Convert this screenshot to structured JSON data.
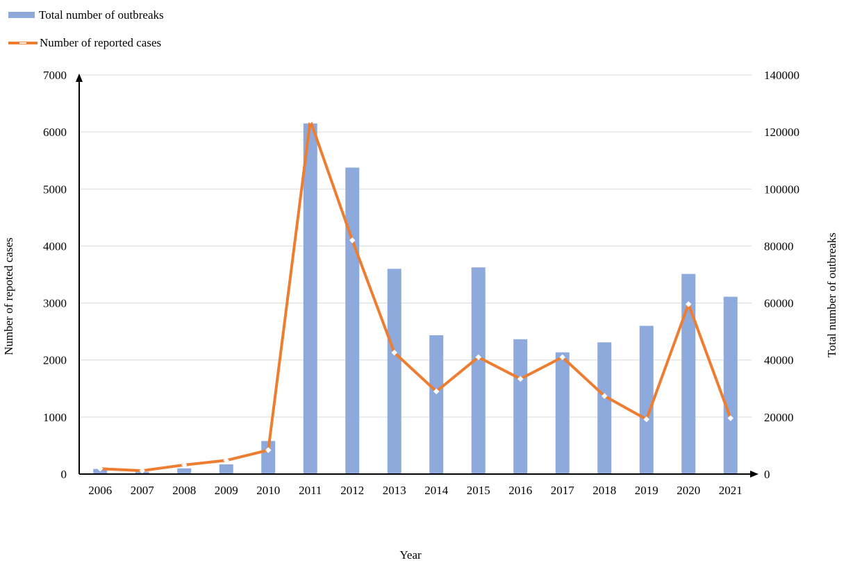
{
  "chart_data": {
    "type": "bar+line",
    "categories": [
      "2006",
      "2007",
      "2008",
      "2009",
      "2010",
      "2011",
      "2012",
      "2013",
      "2014",
      "2015",
      "2016",
      "2017",
      "2018",
      "2019",
      "2020",
      "2021"
    ],
    "series": [
      {
        "name": "Total number of outbreaks",
        "type": "bar",
        "axis": "right",
        "color": "#8EA9DB",
        "values": [
          1800,
          800,
          2000,
          3400,
          11600,
          123000,
          107500,
          72000,
          48700,
          72500,
          47300,
          42700,
          46200,
          52000,
          70200,
          62200
        ]
      },
      {
        "name": "Number of reported cases",
        "type": "line",
        "axis": "left",
        "color": "#ED7D31",
        "marker_color": "#ffffff",
        "values": [
          95,
          60,
          160,
          240,
          420,
          6200,
          4100,
          2130,
          1450,
          2050,
          1670,
          2050,
          1370,
          960,
          2980,
          980
        ]
      }
    ],
    "y_left": {
      "label": "Number of repoted cases",
      "ylim": [
        0,
        7000
      ],
      "ticks": [
        "0",
        "1000",
        "2000",
        "3000",
        "4000",
        "5000",
        "6000",
        "7000"
      ]
    },
    "y_right": {
      "label": "Total number of outbreaks",
      "ylim": [
        0,
        140000
      ],
      "ticks": [
        "0",
        "20000",
        "40000",
        "60000",
        "80000",
        "100000",
        "120000",
        "140000"
      ]
    },
    "xlabel": "Year",
    "grid": true,
    "legend_position": "top-left"
  }
}
